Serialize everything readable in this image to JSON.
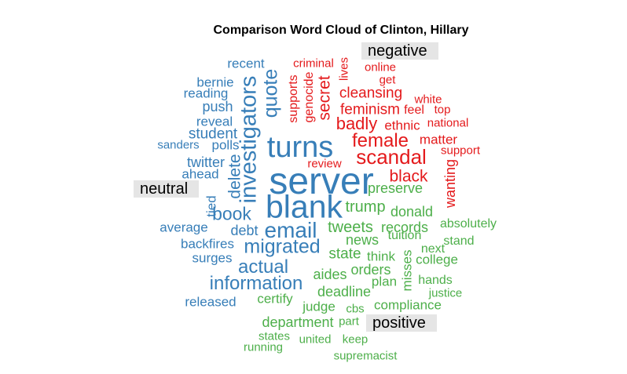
{
  "chart_data": {
    "type": "wordcloud",
    "title": "Comparison Word Cloud of Clinton, Hillary",
    "groups": [
      {
        "name": "negative",
        "color": "#e41a1c",
        "words": [
          "criminal",
          "lives",
          "online",
          "get",
          "supports",
          "genocide",
          "secret",
          "cleansing",
          "feminism",
          "white",
          "feel",
          "top",
          "badly",
          "ethnic",
          "national",
          "female",
          "matter",
          "support",
          "scandal",
          "review",
          "black",
          "wanting"
        ]
      },
      {
        "name": "neutral",
        "color": "#377eb8",
        "words": [
          "recent",
          "bernie",
          "reading",
          "push",
          "investigators",
          "quote",
          "reveal",
          "student",
          "sanders",
          "polls",
          "turns",
          "twitter",
          "delete",
          "ahead",
          "server",
          "tied",
          "blank",
          "book",
          "average",
          "debt",
          "email",
          "backfires",
          "migrated",
          "surges",
          "actual",
          "information",
          "released"
        ]
      },
      {
        "name": "positive",
        "color": "#4daf4a",
        "words": [
          "preserve",
          "trump",
          "donald",
          "absolutely",
          "tweets",
          "records",
          "news",
          "tuition",
          "stand",
          "next",
          "state",
          "think",
          "college",
          "misses",
          "aides",
          "orders",
          "plan",
          "hands",
          "deadline",
          "justice",
          "certify",
          "judge",
          "cbs",
          "compliance",
          "department",
          "part",
          "states",
          "united",
          "keep",
          "running",
          "supremacist"
        ]
      }
    ]
  }
}
